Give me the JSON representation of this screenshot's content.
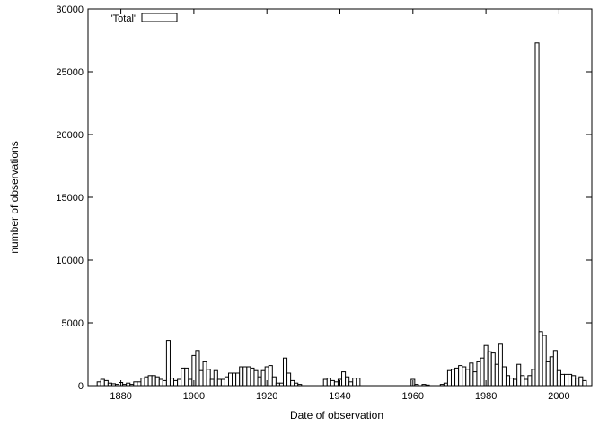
{
  "chart_data": {
    "type": "bar",
    "xlabel": "Date of observation",
    "ylabel": "number of observations",
    "xlim": [
      1871,
      2009
    ],
    "ylim": [
      0,
      30000
    ],
    "xticks": [
      1880,
      1900,
      1920,
      1940,
      1960,
      1980,
      2000
    ],
    "yticks": [
      0,
      5000,
      10000,
      15000,
      20000,
      25000,
      30000
    ],
    "grid": false,
    "legend_position": "top-left",
    "series": [
      {
        "name": "'Total'",
        "x": [
          1874,
          1875,
          1876,
          1877,
          1878,
          1879,
          1880,
          1881,
          1882,
          1883,
          1884,
          1885,
          1886,
          1887,
          1888,
          1889,
          1890,
          1891,
          1892,
          1893,
          1894,
          1895,
          1896,
          1897,
          1898,
          1899,
          1900,
          1901,
          1902,
          1903,
          1904,
          1905,
          1906,
          1907,
          1908,
          1909,
          1910,
          1911,
          1912,
          1913,
          1914,
          1915,
          1916,
          1917,
          1918,
          1919,
          1920,
          1921,
          1922,
          1923,
          1924,
          1925,
          1926,
          1927,
          1928,
          1929,
          1936,
          1937,
          1938,
          1939,
          1940,
          1941,
          1942,
          1943,
          1944,
          1945,
          1960,
          1961,
          1963,
          1964,
          1968,
          1969,
          1970,
          1971,
          1972,
          1973,
          1974,
          1975,
          1976,
          1977,
          1978,
          1979,
          1980,
          1981,
          1982,
          1983,
          1984,
          1985,
          1986,
          1987,
          1988,
          1989,
          1990,
          1991,
          1992,
          1993,
          1994,
          1995,
          1996,
          1997,
          1998,
          1999,
          2000,
          2001,
          2002,
          2003,
          2004,
          2005,
          2006,
          2007
        ],
        "values": [
          300,
          500,
          400,
          200,
          150,
          100,
          250,
          100,
          200,
          100,
          300,
          300,
          600,
          700,
          800,
          800,
          700,
          500,
          400,
          3600,
          600,
          400,
          500,
          1400,
          1400,
          500,
          2400,
          2800,
          1200,
          1900,
          1300,
          500,
          1200,
          500,
          500,
          700,
          1000,
          1000,
          1000,
          1500,
          1500,
          1500,
          1400,
          1200,
          700,
          1200,
          1500,
          1600,
          700,
          200,
          200,
          2200,
          1000,
          400,
          200,
          100,
          500,
          600,
          400,
          300,
          500,
          1100,
          700,
          300,
          600,
          600,
          500,
          100,
          100,
          50,
          100,
          200,
          1200,
          1300,
          1400,
          1600,
          1500,
          1300,
          1800,
          1100,
          1900,
          2200,
          3200,
          2700,
          2600,
          1700,
          3300,
          1500,
          800,
          600,
          500,
          1700,
          800,
          500,
          800,
          1300,
          27300,
          4300,
          4000,
          1900,
          2300,
          2800,
          1200,
          900,
          900,
          900,
          800,
          600,
          700,
          400
        ]
      }
    ]
  }
}
